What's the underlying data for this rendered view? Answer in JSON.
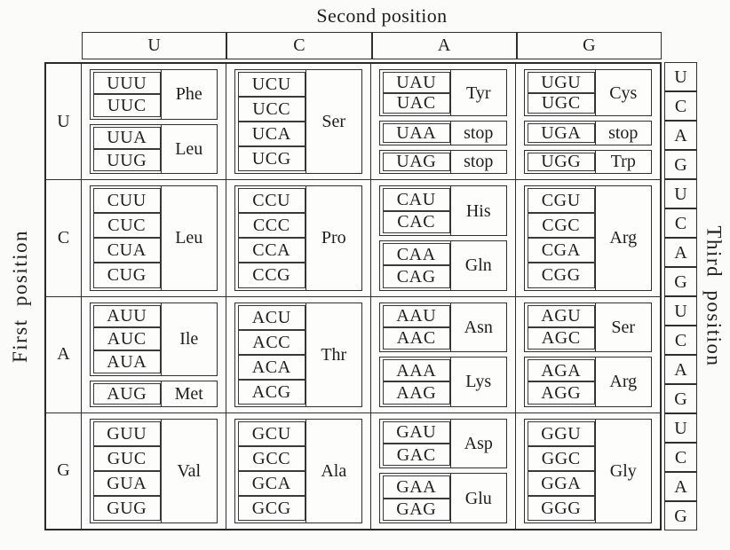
{
  "title": "Second position",
  "axis_labels": {
    "left": "First position",
    "right": "Third position"
  },
  "second_position_letters": [
    "U",
    "C",
    "A",
    "G"
  ],
  "third_position_letters": [
    "U",
    "C",
    "A",
    "G"
  ],
  "rows": [
    {
      "first_position": "U",
      "cells": [
        {
          "groups": [
            {
              "codons": [
                "UUU",
                "UUC"
              ],
              "amino": "Phe"
            },
            {
              "codons": [
                "UUA",
                "UUG"
              ],
              "amino": "Leu"
            }
          ]
        },
        {
          "groups": [
            {
              "codons": [
                "UCU",
                "UCC",
                "UCA",
                "UCG"
              ],
              "amino": "Ser"
            }
          ]
        },
        {
          "groups": [
            {
              "codons": [
                "UAU",
                "UAC"
              ],
              "amino": "Tyr"
            },
            {
              "codons": [
                "UAA"
              ],
              "amino": "stop"
            },
            {
              "codons": [
                "UAG"
              ],
              "amino": "stop"
            }
          ]
        },
        {
          "groups": [
            {
              "codons": [
                "UGU",
                "UGC"
              ],
              "amino": "Cys"
            },
            {
              "codons": [
                "UGA"
              ],
              "amino": "stop"
            },
            {
              "codons": [
                "UGG"
              ],
              "amino": "Trp"
            }
          ]
        }
      ]
    },
    {
      "first_position": "C",
      "cells": [
        {
          "groups": [
            {
              "codons": [
                "CUU",
                "CUC",
                "CUA",
                "CUG"
              ],
              "amino": "Leu"
            }
          ]
        },
        {
          "groups": [
            {
              "codons": [
                "CCU",
                "CCC",
                "CCA",
                "CCG"
              ],
              "amino": "Pro"
            }
          ]
        },
        {
          "groups": [
            {
              "codons": [
                "CAU",
                "CAC"
              ],
              "amino": "His"
            },
            {
              "codons": [
                "CAA",
                "CAG"
              ],
              "amino": "Gln"
            }
          ]
        },
        {
          "groups": [
            {
              "codons": [
                "CGU",
                "CGC",
                "CGA",
                "CGG"
              ],
              "amino": "Arg"
            }
          ]
        }
      ]
    },
    {
      "first_position": "A",
      "cells": [
        {
          "groups": [
            {
              "codons": [
                "AUU",
                "AUC",
                "AUA"
              ],
              "amino": "Ile"
            },
            {
              "codons": [
                "AUG"
              ],
              "amino": "Met"
            }
          ]
        },
        {
          "groups": [
            {
              "codons": [
                "ACU",
                "ACC",
                "ACA",
                "ACG"
              ],
              "amino": "Thr"
            }
          ]
        },
        {
          "groups": [
            {
              "codons": [
                "AAU",
                "AAC"
              ],
              "amino": "Asn"
            },
            {
              "codons": [
                "AAA",
                "AAG"
              ],
              "amino": "Lys"
            }
          ]
        },
        {
          "groups": [
            {
              "codons": [
                "AGU",
                "AGC"
              ],
              "amino": "Ser"
            },
            {
              "codons": [
                "AGA",
                "AGG"
              ],
              "amino": "Arg"
            }
          ]
        }
      ]
    },
    {
      "first_position": "G",
      "cells": [
        {
          "groups": [
            {
              "codons": [
                "GUU",
                "GUC",
                "GUA",
                "GUG"
              ],
              "amino": "Val"
            }
          ]
        },
        {
          "groups": [
            {
              "codons": [
                "GCU",
                "GCC",
                "GCA",
                "GCG"
              ],
              "amino": "Ala"
            }
          ]
        },
        {
          "groups": [
            {
              "codons": [
                "GAU",
                "GAC"
              ],
              "amino": "Asp"
            },
            {
              "codons": [
                "GAA",
                "GAG"
              ],
              "amino": "Glu"
            }
          ]
        },
        {
          "groups": [
            {
              "codons": [
                "GGU",
                "GGC",
                "GGA",
                "GGG"
              ],
              "amino": "Gly"
            }
          ]
        }
      ]
    }
  ]
}
